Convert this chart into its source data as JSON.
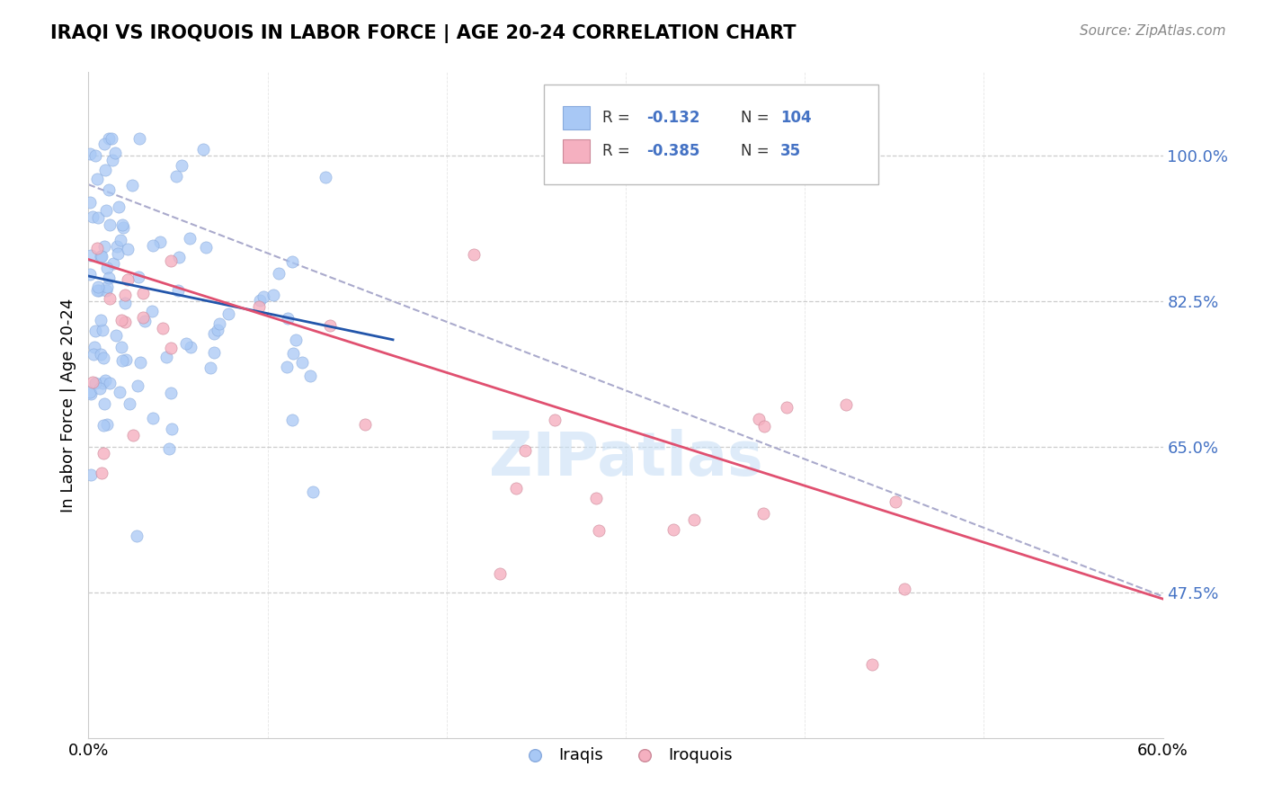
{
  "title": "IRAQI VS IROQUOIS IN LABOR FORCE | AGE 20-24 CORRELATION CHART",
  "source": "Source: ZipAtlas.com",
  "ylabel": "In Labor Force | Age 20-24",
  "xlim": [
    0.0,
    0.6
  ],
  "ylim": [
    0.3,
    1.1
  ],
  "xtick_positions": [
    0.0,
    0.6
  ],
  "xtick_labels": [
    "0.0%",
    "60.0%"
  ],
  "ytick_values": [
    0.475,
    0.65,
    0.825,
    1.0
  ],
  "ytick_labels": [
    "47.5%",
    "65.0%",
    "82.5%",
    "100.0%"
  ],
  "ytick_color": "#4472c4",
  "iraqi_color": "#a8c8f5",
  "iraqi_line_color": "#2255aa",
  "iroquois_color": "#f5b0c0",
  "iroquois_line_color": "#e05070",
  "dashed_line_color": "#aaaacc",
  "grid_color": "#cccccc",
  "legend_box_color": "#dddddd",
  "R_iraqi": -0.132,
  "N_iraqi": 104,
  "R_iroquois": -0.385,
  "N_iroquois": 35,
  "legend_label_1": "Iraqis",
  "legend_label_2": "Iroquois",
  "watermark": "ZIPatlas",
  "watermark_color": "#c8dff5",
  "title_fontsize": 15,
  "source_fontsize": 11,
  "tick_fontsize": 13,
  "legend_fontsize": 13
}
